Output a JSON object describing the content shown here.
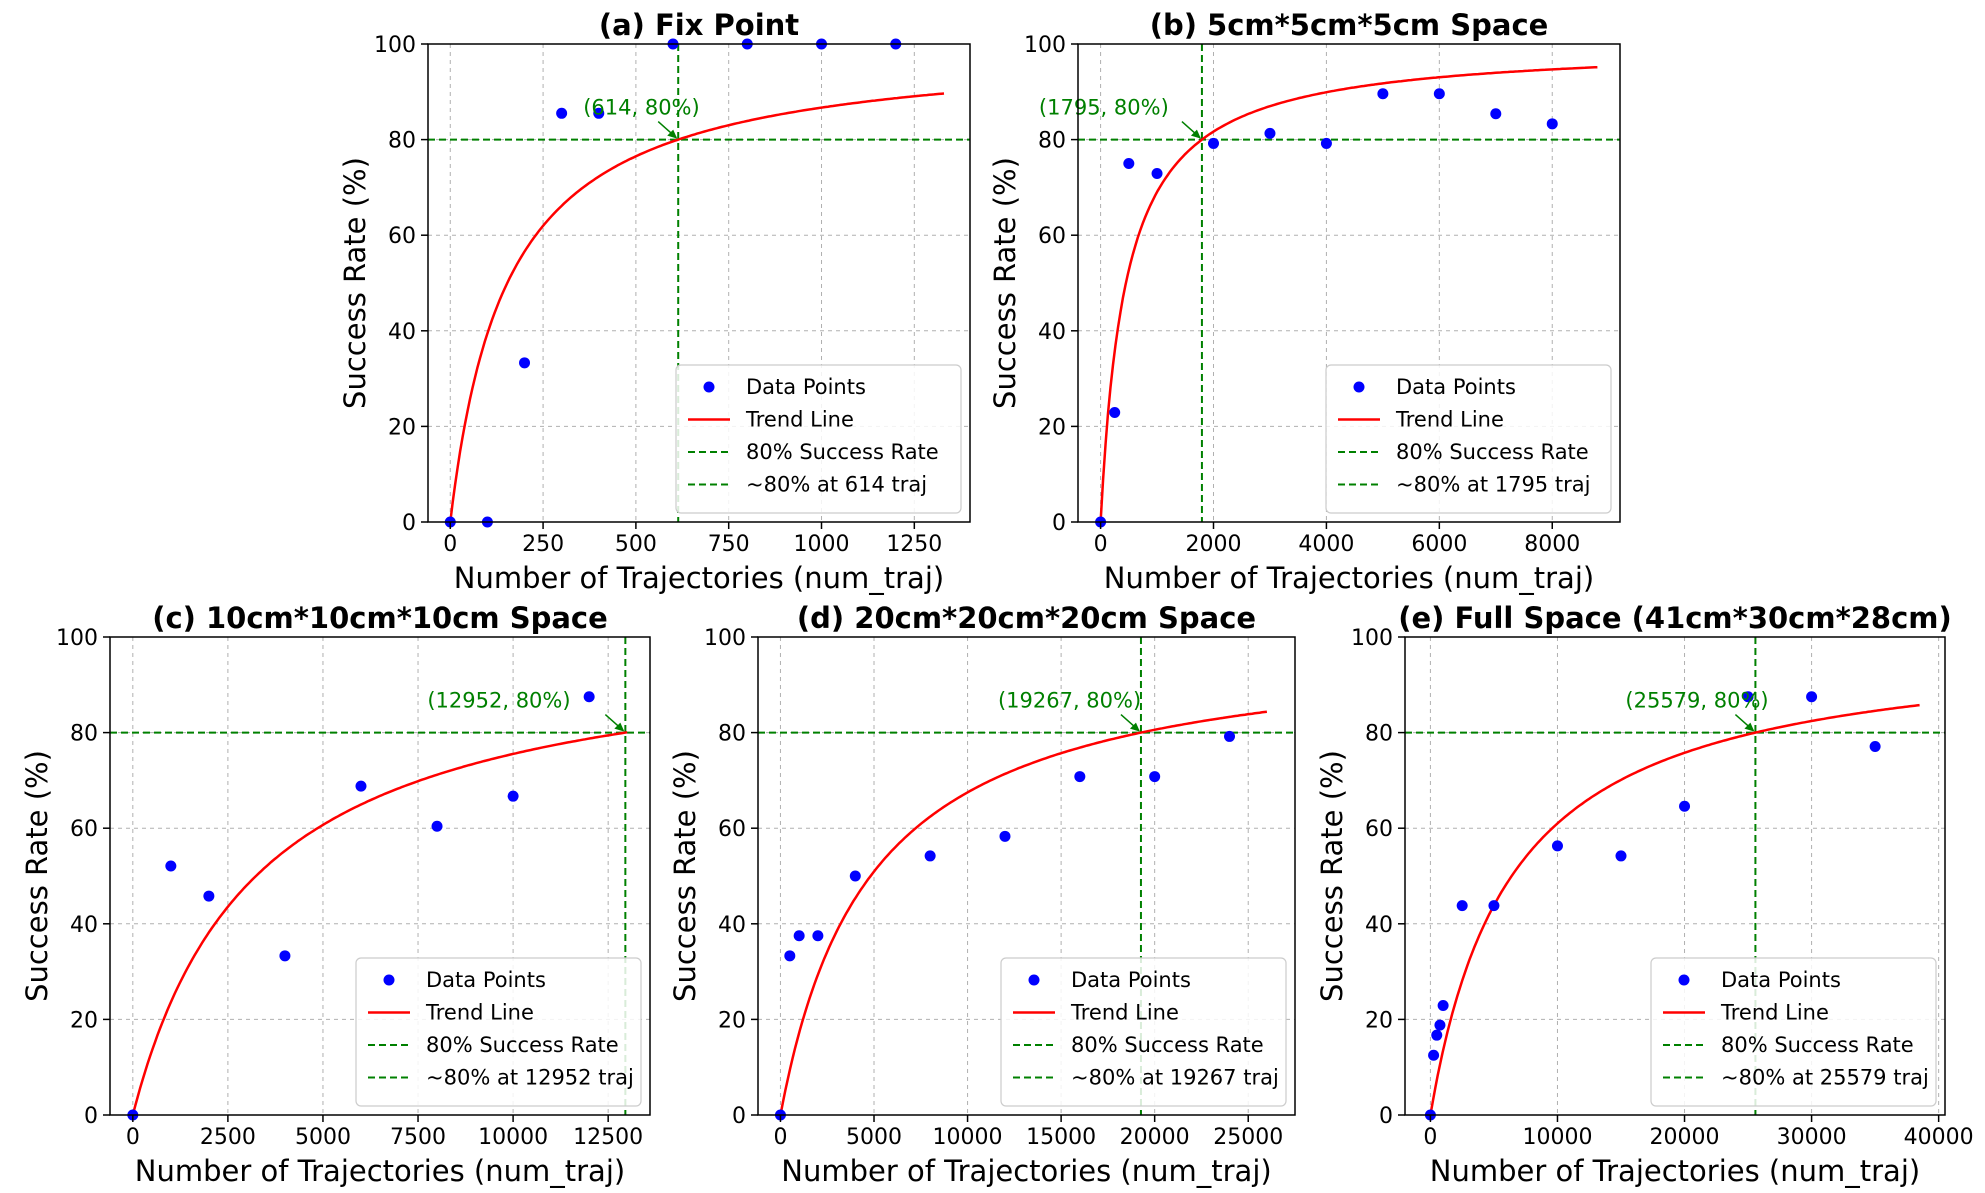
{
  "colors": {
    "points": "#0000ff",
    "trend": "#ff0000",
    "threshold": "#008000",
    "grid": "#b0b0b0",
    "annotation": "#008000"
  },
  "legend": {
    "data_points": "Data Points",
    "trend_line": "Trend Line",
    "success_rate_80": "80% Success Rate"
  },
  "chart_data": [
    {
      "type": "scatter",
      "title": "(a) Fix Point",
      "xlabel": "Number of Trajectories (num_traj)",
      "ylabel": "Success Rate (%)",
      "xlim": [
        -60,
        1400
      ],
      "ylim": [
        0,
        100
      ],
      "xticks": [
        0,
        250,
        500,
        750,
        1000,
        1250
      ],
      "xtick_labels": [
        "0",
        "250",
        "500",
        "750",
        "1000",
        "1250"
      ],
      "yticks": [
        0,
        20,
        40,
        60,
        80,
        100
      ],
      "grid": true,
      "legend_position": "lower-right",
      "series": [
        {
          "name": "Data Points",
          "x": [
            0,
            100,
            200,
            300,
            400,
            600,
            800,
            1000,
            1200
          ],
          "y": [
            0,
            0,
            33.3,
            85.5,
            85.5,
            100,
            100,
            100,
            100
          ]
        }
      ],
      "trend_k": 153.5,
      "trend_xmax": 1330,
      "threshold_x": 614,
      "threshold_y": 80,
      "annotation": "(614, 80%)",
      "threshold_label": "~80% at 614 traj"
    },
    {
      "type": "scatter",
      "title": "(b) 5cm*5cm*5cm Space",
      "xlabel": "Number of Trajectories (num_traj)",
      "ylabel": "Success Rate (%)",
      "xlim": [
        -400,
        9200
      ],
      "ylim": [
        0,
        100
      ],
      "xticks": [
        0,
        2000,
        4000,
        6000,
        8000
      ],
      "xtick_labels": [
        "0",
        "2000",
        "4000",
        "6000",
        "8000"
      ],
      "yticks": [
        0,
        20,
        40,
        60,
        80,
        100
      ],
      "grid": true,
      "legend_position": "lower-right",
      "series": [
        {
          "name": "Data Points",
          "x": [
            0,
            250,
            500,
            1000,
            2000,
            3000,
            4000,
            5000,
            6000,
            7000,
            8000
          ],
          "y": [
            0,
            22.9,
            75,
            72.9,
            79.2,
            81.3,
            79.2,
            89.6,
            89.6,
            85.4,
            83.3
          ]
        }
      ],
      "trend_k": 448.75,
      "trend_xmax": 8800,
      "threshold_x": 1795,
      "threshold_y": 80,
      "annotation": "(1795, 80%)",
      "threshold_label": "~80% at 1795 traj"
    },
    {
      "type": "scatter",
      "title": "(c) 10cm*10cm*10cm Space",
      "xlabel": "Number of Trajectories (num_traj)",
      "ylabel": "Success Rate (%)",
      "xlim": [
        -600,
        13600
      ],
      "ylim": [
        0,
        100
      ],
      "xticks": [
        0,
        2500,
        5000,
        7500,
        10000,
        12500
      ],
      "xtick_labels": [
        "0",
        "2500",
        "5000",
        "7500",
        "10000",
        "12500"
      ],
      "yticks": [
        0,
        20,
        40,
        60,
        80,
        100
      ],
      "grid": true,
      "legend_position": "lower-right",
      "series": [
        {
          "name": "Data Points",
          "x": [
            0,
            1000,
            2000,
            4000,
            6000,
            8000,
            10000,
            12000
          ],
          "y": [
            0,
            52.1,
            45.8,
            33.3,
            68.8,
            60.4,
            66.7,
            87.5
          ]
        }
      ],
      "trend_k": 3238,
      "trend_xmax": 13000,
      "threshold_x": 12952,
      "threshold_y": 80,
      "annotation": "(12952, 80%)",
      "threshold_label": "~80% at 12952 traj"
    },
    {
      "type": "scatter",
      "title": "(d) 20cm*20cm*20cm Space",
      "xlabel": "Number of Trajectories (num_traj)",
      "ylabel": "Success Rate (%)",
      "xlim": [
        -1200,
        27500
      ],
      "ylim": [
        0,
        100
      ],
      "xticks": [
        0,
        5000,
        10000,
        15000,
        20000,
        25000
      ],
      "xtick_labels": [
        "0",
        "5000",
        "10000",
        "15000",
        "20000",
        "25000"
      ],
      "yticks": [
        0,
        20,
        40,
        60,
        80,
        100
      ],
      "grid": true,
      "legend_position": "lower-right",
      "series": [
        {
          "name": "Data Points",
          "x": [
            0,
            500,
            1000,
            2000,
            4000,
            8000,
            12000,
            16000,
            20000,
            24000
          ],
          "y": [
            0,
            33.3,
            37.5,
            37.5,
            50,
            54.2,
            58.3,
            70.8,
            70.8,
            79.2
          ]
        }
      ],
      "trend_k": 4816.75,
      "trend_xmax": 26000,
      "threshold_x": 19267,
      "threshold_y": 80,
      "annotation": "(19267, 80%)",
      "threshold_label": "~80% at 19267 traj"
    },
    {
      "type": "scatter",
      "title": "(e) Full Space (41cm*30cm*28cm)",
      "xlabel": "Number of Trajectories (num_traj)",
      "ylabel": "Success Rate (%)",
      "xlim": [
        -2000,
        40500
      ],
      "ylim": [
        0,
        100
      ],
      "xticks": [
        0,
        10000,
        20000,
        30000,
        40000
      ],
      "xtick_labels": [
        "0",
        "10000",
        "20000",
        "30000",
        "40000"
      ],
      "yticks": [
        0,
        20,
        40,
        60,
        80,
        100
      ],
      "grid": true,
      "legend_position": "lower-right",
      "series": [
        {
          "name": "Data Points",
          "x": [
            0,
            250,
            500,
            750,
            1000,
            2500,
            5000,
            10000,
            15000,
            20000,
            25000,
            30000,
            35000
          ],
          "y": [
            0,
            12.5,
            16.7,
            18.8,
            22.9,
            43.8,
            43.8,
            56.3,
            54.2,
            64.6,
            87.5,
            87.5,
            77.1
          ]
        }
      ],
      "trend_k": 6394.75,
      "trend_xmax": 38500,
      "threshold_x": 25579,
      "threshold_y": 80,
      "annotation": "(25579, 80%)",
      "threshold_label": "~80% at 25579 traj"
    }
  ]
}
